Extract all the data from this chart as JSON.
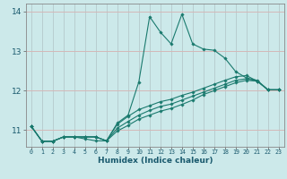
{
  "xlabel": "Humidex (Indice chaleur)",
  "background_color": "#cce9ea",
  "grid_color_h": "#d4b8b8",
  "grid_color_v": "#b8ced0",
  "line_color": "#1a7a6e",
  "xlim": [
    -0.5,
    23.5
  ],
  "ylim": [
    10.58,
    14.2
  ],
  "yticks": [
    11,
    12,
    13,
    14
  ],
  "xticks": [
    0,
    1,
    2,
    3,
    4,
    5,
    6,
    7,
    8,
    9,
    10,
    11,
    12,
    13,
    14,
    15,
    16,
    17,
    18,
    19,
    20,
    21,
    22,
    23
  ],
  "lines": [
    [
      11.1,
      10.72,
      10.72,
      10.83,
      10.83,
      10.78,
      10.73,
      10.73,
      11.18,
      11.38,
      12.22,
      13.87,
      13.48,
      13.18,
      13.93,
      13.18,
      13.05,
      13.02,
      12.82,
      12.48,
      12.32,
      12.26,
      12.02,
      12.02
    ],
    [
      11.1,
      10.72,
      10.72,
      10.83,
      10.83,
      10.83,
      10.83,
      10.73,
      11.15,
      11.35,
      11.52,
      11.62,
      11.72,
      11.78,
      11.88,
      11.96,
      12.06,
      12.16,
      12.26,
      12.35,
      12.38,
      12.24,
      12.02,
      12.02
    ],
    [
      11.1,
      10.72,
      10.72,
      10.83,
      10.83,
      10.83,
      10.83,
      10.73,
      11.05,
      11.22,
      11.38,
      11.5,
      11.6,
      11.66,
      11.76,
      11.86,
      11.96,
      12.06,
      12.16,
      12.26,
      12.3,
      12.24,
      12.02,
      12.02
    ],
    [
      11.1,
      10.72,
      10.72,
      10.83,
      10.83,
      10.83,
      10.83,
      10.73,
      10.98,
      11.12,
      11.28,
      11.38,
      11.48,
      11.55,
      11.65,
      11.76,
      11.9,
      12.0,
      12.1,
      12.2,
      12.26,
      12.24,
      12.02,
      12.02
    ]
  ]
}
